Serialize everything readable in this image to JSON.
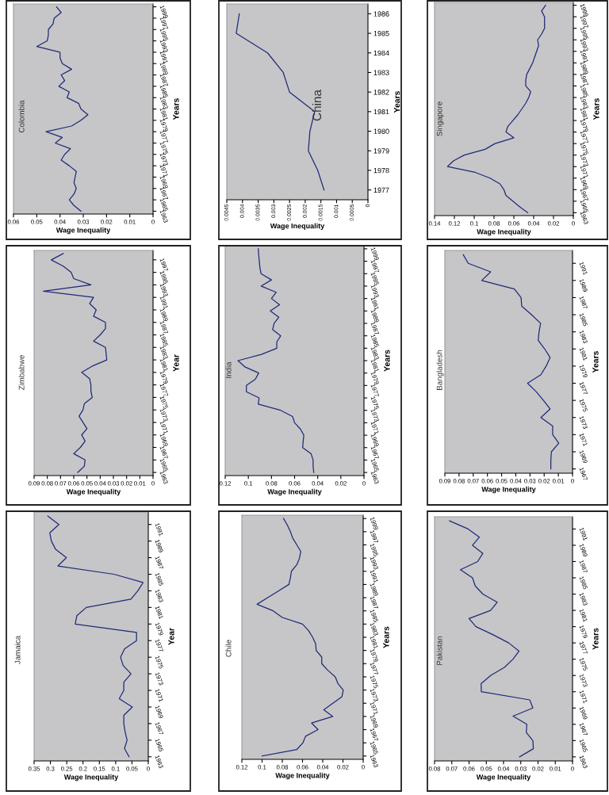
{
  "chart_data": [
    {
      "type": "line",
      "title": "Colombia",
      "xlabel": "Wage Inequality",
      "ylabel": "Years",
      "orientation": "horizontal",
      "color": "#1f2a78",
      "x": [
        1963,
        1964,
        1965,
        1966,
        1967,
        1968,
        1969,
        1970,
        1971,
        1972,
        1973,
        1974,
        1975,
        1976,
        1977,
        1978,
        1979,
        1980,
        1981,
        1982,
        1983,
        1984,
        1985,
        1986,
        1987,
        1988,
        1989,
        1990,
        1991,
        1992,
        1993,
        1994,
        1995,
        1996,
        1997,
        1998,
        1999
      ],
      "values": [
        0.031,
        0.034,
        0.036,
        0.034,
        0.033,
        0.034,
        0.0335,
        0.033,
        0.036,
        0.0395,
        0.038,
        0.0355,
        0.042,
        0.039,
        0.046,
        0.035,
        0.031,
        0.028,
        0.031,
        0.032,
        0.037,
        0.036,
        0.0405,
        0.038,
        0.0395,
        0.035,
        0.039,
        0.04,
        0.04,
        0.05,
        0.0455,
        0.045,
        0.045,
        0.043,
        0.0425,
        0.0395,
        0.0415
      ],
      "xlim": [
        0.06,
        0
      ],
      "xticks": [
        0.06,
        0.05,
        0.04,
        0.03,
        0.02,
        0.01,
        0
      ],
      "ylim": [
        1962.5,
        1999.5
      ],
      "yticks": [
        1963,
        1965,
        1967,
        1969,
        1971,
        1973,
        1975,
        1977,
        1979,
        1981,
        1983,
        1985,
        1987,
        1989,
        1991,
        1993,
        1995,
        1997,
        1999
      ]
    },
    {
      "type": "line",
      "title": "Zimbabwe",
      "xlabel": "Wage Inequality",
      "ylabel": "Year",
      "orientation": "horizontal",
      "color": "#1f2a78",
      "x": [
        1963,
        1964,
        1965,
        1966,
        1967,
        1968,
        1969,
        1970,
        1971,
        1972,
        1973,
        1974,
        1975,
        1976,
        1977,
        1978,
        1979,
        1980,
        1981,
        1982,
        1983,
        1984,
        1985,
        1986,
        1987,
        1988,
        1989,
        1990,
        1991,
        1992,
        1993,
        1994,
        1995,
        1996,
        1997,
        1998
      ],
      "values": [
        0.057,
        0.052,
        0.0514,
        0.06,
        0.055,
        0.0514,
        0.054,
        0.05,
        0.053,
        0.056,
        0.053,
        0.052,
        0.046,
        0.047,
        0.047,
        0.048,
        0.054,
        0.046,
        0.035,
        0.0355,
        0.036,
        0.045,
        0.04,
        0.036,
        0.036,
        0.045,
        0.043,
        0.048,
        0.045,
        0.083,
        0.047,
        0.06,
        0.062,
        0.068,
        0.077,
        0.068
      ],
      "xlim": [
        0.09,
        0
      ],
      "xticks": [
        0.09,
        0.08,
        0.07,
        0.06,
        0.05,
        0.04,
        0.03,
        0.02,
        0.01,
        0
      ],
      "ylim": [
        1962.5,
        1998.5
      ],
      "yticks": [
        1963,
        1965,
        1967,
        1969,
        1971,
        1973,
        1975,
        1977,
        1979,
        1981,
        1983,
        1985,
        1987,
        1989,
        1991,
        1993,
        1995,
        1997
      ]
    },
    {
      "type": "line",
      "title": "Jamaica",
      "xlabel": "Wage Inequality",
      "ylabel": "Year",
      "orientation": "horizontal",
      "color": "#1f2a78",
      "x": [
        1963,
        1964,
        1965,
        1966,
        1967,
        1968,
        1969,
        1970,
        1971,
        1972,
        1973,
        1974,
        1975,
        1976,
        1977,
        1978,
        1979,
        1980,
        1981,
        1982,
        1983,
        1984,
        1985,
        1986,
        1987,
        1988,
        1989,
        1990,
        1991,
        1992
      ],
      "values": [
        0.059,
        0.073,
        0.065,
        0.071,
        0.075,
        0.075,
        0.049,
        0.089,
        0.075,
        0.075,
        0.053,
        0.077,
        0.085,
        0.073,
        0.036,
        0.036,
        0.224,
        0.219,
        0.19,
        0.053,
        0.032,
        0.016,
        0.105,
        0.277,
        0.251,
        0.284,
        0.297,
        0.302,
        0.274,
        0.308
      ],
      "xlim": [
        0.35,
        0
      ],
      "xticks": [
        0.35,
        0.3,
        0.25,
        0.2,
        0.15,
        0.1,
        0.05,
        0
      ],
      "ylim": [
        1962.5,
        1992.5
      ],
      "yticks": [
        1963,
        1965,
        1967,
        1969,
        1971,
        1973,
        1975,
        1977,
        1979,
        1981,
        1983,
        1985,
        1987,
        1989,
        1991
      ]
    },
    {
      "type": "line",
      "title": "China",
      "xlabel": "Wage Inequality",
      "ylabel": "Years",
      "orientation": "horizontal",
      "color": "#1f2a78",
      "x": [
        1977,
        1978,
        1979,
        1980,
        1981,
        1982,
        1983,
        1984,
        1985,
        1986
      ],
      "values": [
        0.0014,
        0.0016,
        0.0019,
        0.00185,
        0.0017,
        0.0025,
        0.0027,
        0.0032,
        0.0042,
        0.0041
      ],
      "xlim": [
        0.0045,
        0
      ],
      "xticks": [
        0.0045,
        0.004,
        0.0035,
        0.003,
        0.0025,
        0.002,
        0.0015,
        0.001,
        0.0005,
        0
      ],
      "ylim": [
        1976.5,
        1986.5
      ],
      "yticks": [
        1977,
        1978,
        1979,
        1980,
        1981,
        1982,
        1983,
        1984,
        1985,
        1986
      ]
    },
    {
      "type": "line",
      "title": "India",
      "xlabel": "Wage Inequality",
      "ylabel": "Years",
      "orientation": "horizontal",
      "color": "#1f2a78",
      "x": [
        1963,
        1964,
        1965,
        1966,
        1967,
        1968,
        1969,
        1970,
        1971,
        1972,
        1973,
        1974,
        1975,
        1976,
        1977,
        1978,
        1979,
        1980,
        1981,
        1982,
        1983,
        1984,
        1985,
        1986,
        1987,
        1988,
        1989,
        1990,
        1991,
        1992,
        1993,
        1994,
        1995,
        1996,
        1997,
        1998,
        1999
      ],
      "values": [
        0.0434,
        0.044,
        0.044,
        0.0457,
        0.053,
        0.0526,
        0.052,
        0.055,
        0.06,
        0.0617,
        0.072,
        0.0914,
        0.0907,
        0.1017,
        0.1017,
        0.094,
        0.091,
        0.103,
        0.109,
        0.0887,
        0.0754,
        0.0754,
        0.072,
        0.079,
        0.0777,
        0.0736,
        0.081,
        0.073,
        0.08,
        0.076,
        0.089,
        0.08,
        0.089,
        0.09,
        0.0905,
        0.091,
        0.0914
      ],
      "xlim": [
        0.12,
        0
      ],
      "xticks": [
        0.12,
        0.1,
        0.08,
        0.06,
        0.04,
        0.02,
        0
      ],
      "ylim": [
        1962.5,
        1999.5
      ],
      "yticks": [
        1963,
        1965,
        1967,
        1969,
        1971,
        1973,
        1975,
        1977,
        1979,
        1981,
        1983,
        1985,
        1987,
        1989,
        1991,
        1993,
        1995,
        1997,
        1999
      ]
    },
    {
      "type": "line",
      "title": "Chile",
      "xlabel": "Wage Inequality",
      "ylabel": "Years",
      "orientation": "horizontal",
      "color": "#1f2a78",
      "x": [
        1963,
        1964,
        1965,
        1966,
        1967,
        1968,
        1969,
        1970,
        1971,
        1972,
        1973,
        1974,
        1975,
        1976,
        1977,
        1978,
        1979,
        1980,
        1981,
        1982,
        1983,
        1984,
        1985,
        1986,
        1987,
        1988,
        1989,
        1990,
        1991,
        1992,
        1993,
        1994,
        1995,
        1996,
        1997,
        1998,
        1999
      ],
      "values": [
        0.1,
        0.0656,
        0.0596,
        0.057,
        0.0446,
        0.051,
        0.03,
        0.039,
        0.03,
        0.021,
        0.0197,
        0.025,
        0.0276,
        0.035,
        0.041,
        0.041,
        0.0465,
        0.047,
        0.05,
        0.054,
        0.06,
        0.08,
        0.089,
        0.105,
        0.0945,
        0.084,
        0.0735,
        0.072,
        0.071,
        0.0656,
        0.063,
        0.0617,
        0.0656,
        0.0696,
        0.072,
        0.075,
        0.0788
      ],
      "xlim": [
        0.12,
        0
      ],
      "xticks": [
        0.12,
        0.1,
        0.08,
        0.06,
        0.04,
        0.02,
        0
      ],
      "ylim": [
        1962.5,
        1999.5
      ],
      "yticks": [
        1963,
        1965,
        1967,
        1969,
        1971,
        1973,
        1975,
        1977,
        1979,
        1981,
        1983,
        1985,
        1987,
        1989,
        1991,
        1993,
        1995,
        1997,
        1999
      ]
    },
    {
      "type": "line",
      "title": "Singapore",
      "xlabel": "Wage Inequality",
      "ylabel": "Years",
      "orientation": "horizontal",
      "color": "#1f2a78",
      "x": [
        1963,
        1964,
        1965,
        1966,
        1967,
        1968,
        1969,
        1970,
        1971,
        1972,
        1973,
        1974,
        1975,
        1976,
        1977,
        1978,
        1979,
        1980,
        1981,
        1982,
        1983,
        1984,
        1985,
        1986,
        1987,
        1988,
        1989,
        1990,
        1991,
        1992,
        1993,
        1994,
        1995,
        1996,
        1997,
        1998,
        1999
      ],
      "values": [
        0.046,
        0.054,
        0.061,
        0.068,
        0.07,
        0.074,
        0.084,
        0.099,
        0.127,
        0.121,
        0.11,
        0.089,
        0.079,
        0.06,
        0.068,
        0.066,
        0.061,
        0.056,
        0.052,
        0.048,
        0.045,
        0.043,
        0.048,
        0.048,
        0.047,
        0.044,
        0.041,
        0.039,
        0.037,
        0.035,
        0.036,
        0.032,
        0.029,
        0.029,
        0.029,
        0.032,
        0.028
      ],
      "xlim": [
        0.14,
        0
      ],
      "xticks": [
        0.14,
        0.12,
        0.1,
        0.08,
        0.06,
        0.04,
        0.02,
        0
      ],
      "ylim": [
        1962.5,
        1999.5
      ],
      "yticks": [
        1963,
        1965,
        1967,
        1969,
        1971,
        1973,
        1975,
        1977,
        1979,
        1981,
        1983,
        1985,
        1987,
        1989,
        1991,
        1993,
        1995,
        1997,
        1999
      ]
    },
    {
      "type": "line",
      "title": "Bangladesh",
      "xlabel": "Wage Inequality",
      "ylabel": "Years",
      "orientation": "horizontal",
      "color": "#1f2a78",
      "x": [
        1967,
        1968,
        1969,
        1970,
        1971,
        1972,
        1973,
        1974,
        1975,
        1976,
        1977,
        1978,
        1979,
        1980,
        1981,
        1982,
        1983,
        1984,
        1985,
        1986,
        1987,
        1988,
        1989,
        1990,
        1991,
        1992
      ],
      "values": [
        0.0153,
        0.0153,
        0.0149,
        0.0097,
        0.014,
        0.014,
        0.0223,
        0.0158,
        0.0205,
        0.0255,
        0.0317,
        0.0223,
        0.0186,
        0.0158,
        0.0196,
        0.0242,
        0.0236,
        0.0225,
        0.0289,
        0.0358,
        0.0363,
        0.041,
        0.064,
        0.0577,
        0.0735,
        0.077
      ],
      "xlim": [
        0.09,
        0
      ],
      "xticks": [
        0.09,
        0.08,
        0.07,
        0.06,
        0.05,
        0.04,
        0.03,
        0.02,
        0.01,
        0
      ],
      "ylim": [
        1966.5,
        1992.5
      ],
      "yticks": [
        1967,
        1969,
        1971,
        1973,
        1975,
        1977,
        1979,
        1981,
        1983,
        1985,
        1987,
        1989,
        1991
      ]
    },
    {
      "type": "line",
      "title": "Pakistan",
      "xlabel": "Wage Inequality",
      "ylabel": "Years",
      "orientation": "horizontal",
      "color": "#1f2a78",
      "x": [
        1963,
        1964,
        1965,
        1966,
        1967,
        1968,
        1969,
        1970,
        1971,
        1972,
        1973,
        1974,
        1975,
        1976,
        1977,
        1978,
        1979,
        1980,
        1981,
        1982,
        1983,
        1984,
        1985,
        1986,
        1987,
        1988,
        1989,
        1990,
        1991,
        1992
      ],
      "values": [
        0.0307,
        0.0227,
        0.023,
        0.0268,
        0.0265,
        0.0345,
        0.023,
        0.0248,
        0.0529,
        0.053,
        0.0475,
        0.0395,
        0.0345,
        0.031,
        0.037,
        0.046,
        0.056,
        0.06,
        0.0475,
        0.0437,
        0.052,
        0.0564,
        0.058,
        0.065,
        0.055,
        0.052,
        0.058,
        0.054,
        0.0605,
        0.0713
      ],
      "xlim": [
        0.08,
        0
      ],
      "xticks": [
        0.08,
        0.07,
        0.06,
        0.05,
        0.04,
        0.03,
        0.02,
        0.01,
        0
      ],
      "ylim": [
        1962.5,
        1992.5
      ],
      "yticks": [
        1963,
        1965,
        1967,
        1969,
        1971,
        1973,
        1975,
        1977,
        1979,
        1981,
        1983,
        1985,
        1987,
        1989,
        1991
      ]
    }
  ]
}
